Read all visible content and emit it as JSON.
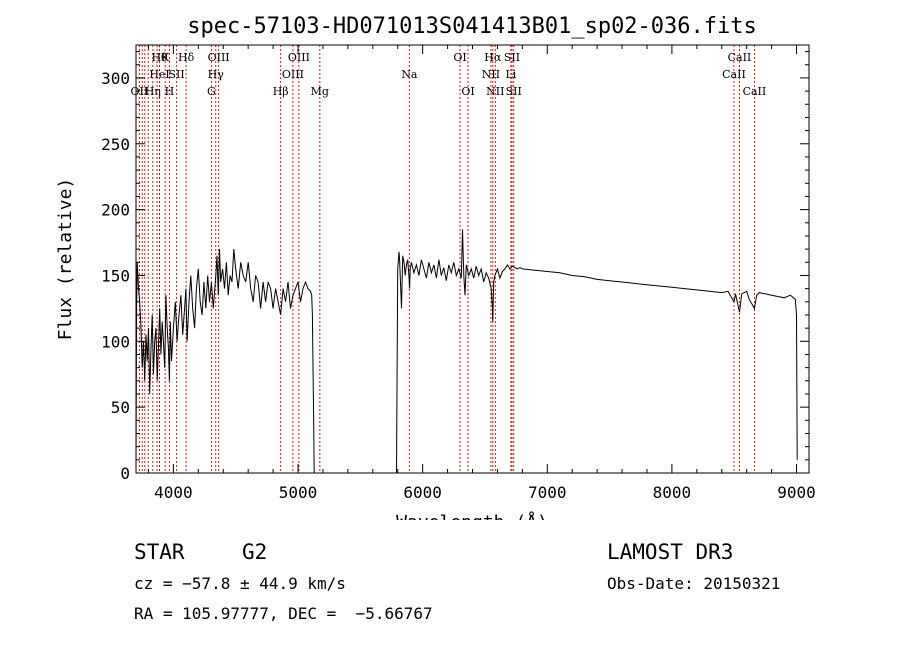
{
  "chart_data": {
    "type": "line",
    "title": "spec-57103-HD071013S041413B01_sp02-036.fits",
    "xlabel": "Wavelength (Å)",
    "ylabel": "Flux (relative)",
    "xlim": [
      3700,
      9100
    ],
    "ylim": [
      0,
      325
    ],
    "x_ticks": [
      4000,
      5000,
      6000,
      7000,
      8000,
      9000
    ],
    "x_tick_labels": [
      "4000",
      "5000",
      "6000",
      "7000",
      "8000",
      "9000"
    ],
    "y_ticks": [
      0,
      50,
      100,
      150,
      200,
      250,
      300
    ],
    "y_tick_labels": [
      "0",
      "50",
      "100",
      "150",
      "200",
      "250",
      "300"
    ],
    "line_color": "#000000",
    "marker_color": "#cc0000",
    "grid": false,
    "series": [
      {
        "segments": [
          {
            "x": [
              3700,
              3705,
              3710,
              3720,
              3730,
              3740,
              3750,
              3760,
              3770,
              3780,
              3790,
              3800,
              3810,
              3820,
              3830,
              3840,
              3850,
              3860,
              3870,
              3880,
              3890,
              3900,
              3910,
              3920,
              3930,
              3934,
              3940,
              3950,
              3960,
              3968,
              3975,
              3985,
              4000,
              4015,
              4030,
              4045,
              4060,
              4075,
              4090,
              4100,
              4110,
              4125,
              4140,
              4155,
              4170,
              4185,
              4200,
              4215,
              4230,
              4245,
              4260,
              4275,
              4290,
              4305,
              4320,
              4340,
              4350,
              4360,
              4370,
              4380,
              4395,
              4410,
              4425,
              4440,
              4455,
              4470,
              4485,
              4500,
              4520,
              4540,
              4560,
              4580,
              4600,
              4620,
              4640,
              4660,
              4680,
              4700,
              4720,
              4740,
              4760,
              4780,
              4800,
              4820,
              4840,
              4860,
              4880,
              4900,
              4920,
              4940,
              4960,
              4980,
              5000,
              5020,
              5040,
              5060,
              5080,
              5100,
              5110,
              5115,
              5120,
              5125,
              5130
            ],
            "y": [
              5,
              125,
              160,
              140,
              130,
              110,
              80,
              100,
              70,
              105,
              85,
              110,
              60,
              95,
              120,
              75,
              100,
              110,
              70,
              95,
              125,
              90,
              115,
              100,
              80,
              100,
              135,
              110,
              95,
              70,
              115,
              85,
              110,
              130,
              100,
              120,
              135,
              105,
              125,
              140,
              100,
              130,
              150,
              125,
              110,
              140,
              155,
              130,
              120,
              145,
              125,
              150,
              130,
              145,
              125,
              150,
              165,
              135,
              170,
              145,
              155,
              140,
              160,
              135,
              150,
              145,
              170,
              155,
              140,
              160,
              150,
              145,
              160,
              140,
              130,
              150,
              145,
              125,
              145,
              130,
              145,
              140,
              125,
              140,
              130,
              120,
              140,
              130,
              145,
              125,
              135,
              140,
              145,
              130,
              140,
              145,
              140,
              138,
              135,
              120,
              80,
              45,
              0
            ]
          },
          {
            "x": [
              5790,
              5800,
              5810,
              5815,
              5820,
              5830,
              5840,
              5850,
              5860,
              5870,
              5880,
              5890,
              5895,
              5900,
              5910,
              5930,
              5950,
              5970,
              5990,
              6010,
              6030,
              6050,
              6070,
              6090,
              6110,
              6130,
              6150,
              6170,
              6190,
              6210,
              6230,
              6250,
              6270,
              6290,
              6310,
              6320,
              6330,
              6340,
              6350,
              6370,
              6390,
              6410,
              6430,
              6450,
              6470,
              6490,
              6510,
              6530,
              6550,
              6560,
              6563,
              6566,
              6570,
              6580,
              6600,
              6620,
              6640,
              6660,
              6680,
              6700,
              6720,
              6740,
              6760,
              6780,
              6800,
              6900,
              7000,
              7100,
              7200,
              7300,
              7400,
              7500,
              7600,
              7700,
              7800,
              7900,
              8000,
              8100,
              8200,
              8300,
              8400,
              8450,
              8498,
              8510,
              8542,
              8560,
              8600,
              8620,
              8662,
              8680,
              8700,
              8750,
              8800,
              8850,
              8900,
              8950,
              8990,
              9000,
              9005
            ],
            "y": [
              0,
              155,
              168,
              162,
              150,
              125,
              165,
              160,
              150,
              158,
              162,
              150,
              140,
              155,
              160,
              152,
              158,
              150,
              162,
              155,
              148,
              160,
              152,
              158,
              148,
              162,
              150,
              156,
              146,
              158,
              152,
              160,
              150,
              155,
              148,
              185,
              150,
              135,
              158,
              150,
              155,
              148,
              157,
              150,
              155,
              145,
              152,
              148,
              140,
              125,
              115,
              130,
              145,
              150,
              155,
              148,
              153,
              155,
              158,
              155,
              157,
              156,
              155,
              156,
              155,
              154,
              153,
              152,
              150,
              149,
              147,
              146,
              145,
              144,
              143,
              142,
              141,
              140,
              139,
              138,
              137,
              138,
              130,
              136,
              122,
              136,
              138,
              132,
              125,
              135,
              137,
              136,
              135,
              134,
              133,
              135,
              132,
              120,
              10
            ]
          }
        ]
      }
    ],
    "line_markers": [
      {
        "x": 3727,
        "label": "OII",
        "row": 3
      },
      {
        "x": 3750,
        "label": "",
        "row": 0
      },
      {
        "x": 3771,
        "label": "",
        "row": 0
      },
      {
        "x": 3798,
        "label": "",
        "row": 0
      },
      {
        "x": 3835,
        "label": "Hη",
        "row": 3
      },
      {
        "x": 3869,
        "label": "",
        "row": 0
      },
      {
        "x": 3889,
        "label": "Hθ",
        "row": 1
      },
      {
        "x": 3889,
        "label": "HeI",
        "row": 2
      },
      {
        "x": 3934,
        "label": "K",
        "row": 1
      },
      {
        "x": 3968,
        "label": "H",
        "row": 3
      },
      {
        "x": 4026,
        "label": "SII",
        "row": 2
      },
      {
        "x": 4102,
        "label": "Hδ",
        "row": 1
      },
      {
        "x": 4305,
        "label": "G",
        "row": 3
      },
      {
        "x": 4340,
        "label": "Hγ",
        "row": 2
      },
      {
        "x": 4363,
        "label": "OIII",
        "row": 1
      },
      {
        "x": 4861,
        "label": "Hβ",
        "row": 3
      },
      {
        "x": 4959,
        "label": "OIII",
        "row": 2
      },
      {
        "x": 5007,
        "label": "OIII",
        "row": 1
      },
      {
        "x": 5175,
        "label": "Mg",
        "row": 3
      },
      {
        "x": 5893,
        "label": "Na",
        "row": 2
      },
      {
        "x": 6300,
        "label": "OI",
        "row": 1
      },
      {
        "x": 6364,
        "label": "OI",
        "row": 3
      },
      {
        "x": 6548,
        "label": "NII",
        "row": 2
      },
      {
        "x": 6563,
        "label": "Hα",
        "row": 1
      },
      {
        "x": 6583,
        "label": "NII",
        "row": 3
      },
      {
        "x": 6708,
        "label": "Li",
        "row": 2
      },
      {
        "x": 6717,
        "label": "SII",
        "row": 1
      },
      {
        "x": 6731,
        "label": "SII",
        "row": 3
      },
      {
        "x": 8498,
        "label": "CaII",
        "row": 2
      },
      {
        "x": 8542,
        "label": "CaII",
        "row": 1
      },
      {
        "x": 8662,
        "label": "CaII",
        "row": 3
      }
    ]
  },
  "info": {
    "class": "STAR",
    "subclass": "G2",
    "survey": "LAMOST DR3",
    "cz": "cz = −57.8 ± 44.9 km/s",
    "obs_date": "Obs-Date: 20150321",
    "radec": "RA = 105.97777, DEC =  −5.66767"
  }
}
